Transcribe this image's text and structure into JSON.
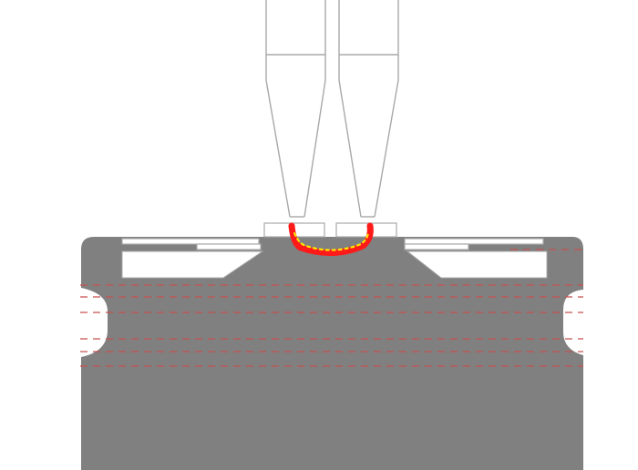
{
  "colors": {
    "background": "#ffffff",
    "body_fill": "#808080",
    "outline": "#a8a8a8",
    "cavity_fill": "#ffffff",
    "dashed_line": "#c8504f",
    "weld_outer": "#ff1a1a",
    "weld_inner": "#ffe400"
  },
  "parts": {
    "electrodes": "two-tapered-probes",
    "lid": "top-lid-with-side-plates",
    "body": "gray-can-body-with-neck-groove",
    "weld": "weld-bead-between-probe-tips",
    "reference_lines": "dashed-horizontal-lines"
  }
}
